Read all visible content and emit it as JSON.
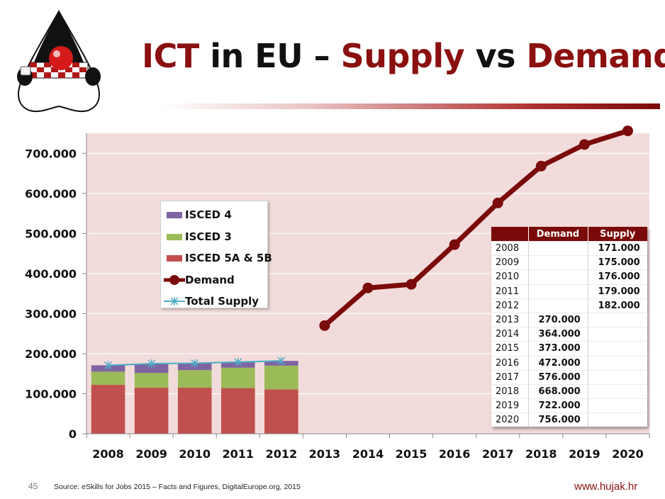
{
  "slide": {
    "title_parts": [
      "ICT",
      " in EU – ",
      "Supply",
      " vs ",
      "Demand"
    ],
    "page_number": "45",
    "source": "Source: eSkills for Jobs 2015 – Facts and Figures, DigitalEurope.org, 2015",
    "website": "www.hujak.hr"
  },
  "colors": {
    "accent": "#8b1010",
    "plot_bg": "#f2dcdb",
    "isced4": "#8064a2",
    "isced3": "#9bbb59",
    "isced5": "#c0504d",
    "demand": "#7b0a0a",
    "supply": "#4bacc6"
  },
  "chart_data": {
    "type": "bar",
    "categories": [
      "2008",
      "2009",
      "2010",
      "2011",
      "2012",
      "2013",
      "2014",
      "2015",
      "2016",
      "2017",
      "2018",
      "2019",
      "2020"
    ],
    "ylim": [
      0,
      750000
    ],
    "y_ticks": [
      0,
      100000,
      200000,
      300000,
      400000,
      500000,
      600000,
      700000
    ],
    "y_tick_labels": [
      "0",
      "100.000",
      "200.000",
      "300.000",
      "400.000",
      "500.000",
      "600.000",
      "700.000"
    ],
    "series": [
      {
        "name": "ISCED 5A & 5B",
        "kind": "stacked-bar",
        "values": [
          122000,
          115000,
          115000,
          114000,
          111000,
          null,
          null,
          null,
          null,
          null,
          null,
          null,
          null
        ]
      },
      {
        "name": "ISCED 3",
        "kind": "stacked-bar",
        "values": [
          33000,
          37000,
          44000,
          51000,
          59000,
          null,
          null,
          null,
          null,
          null,
          null,
          null,
          null
        ]
      },
      {
        "name": "ISCED 4",
        "kind": "stacked-bar",
        "values": [
          16000,
          23000,
          17000,
          14000,
          12000,
          null,
          null,
          null,
          null,
          null,
          null,
          null,
          null
        ]
      },
      {
        "name": "Demand",
        "kind": "line",
        "values": [
          null,
          null,
          null,
          null,
          null,
          270000,
          364000,
          373000,
          472000,
          576000,
          668000,
          722000,
          756000
        ]
      },
      {
        "name": "Total Supply",
        "kind": "line",
        "values": [
          171000,
          175000,
          176000,
          179000,
          182000,
          null,
          null,
          null,
          null,
          null,
          null,
          null,
          null
        ]
      }
    ],
    "legend_order": [
      "ISCED 4",
      "ISCED 3",
      "ISCED 5A & 5B",
      "Demand",
      "Total Supply"
    ],
    "legend_placement": "upper-left",
    "grid": "horizontal",
    "table": {
      "headers": [
        "",
        "Demand",
        "Supply"
      ],
      "rows": [
        [
          "2008",
          "",
          "171.000"
        ],
        [
          "2009",
          "",
          "175.000"
        ],
        [
          "2010",
          "",
          "176.000"
        ],
        [
          "2011",
          "",
          "179.000"
        ],
        [
          "2012",
          "",
          "182.000"
        ],
        [
          "2013",
          "270.000",
          ""
        ],
        [
          "2014",
          "364.000",
          ""
        ],
        [
          "2015",
          "373.000",
          ""
        ],
        [
          "2016",
          "472.000",
          ""
        ],
        [
          "2017",
          "576.000",
          ""
        ],
        [
          "2018",
          "668.000",
          ""
        ],
        [
          "2019",
          "722.000",
          ""
        ],
        [
          "2020",
          "756.000",
          ""
        ]
      ]
    }
  }
}
